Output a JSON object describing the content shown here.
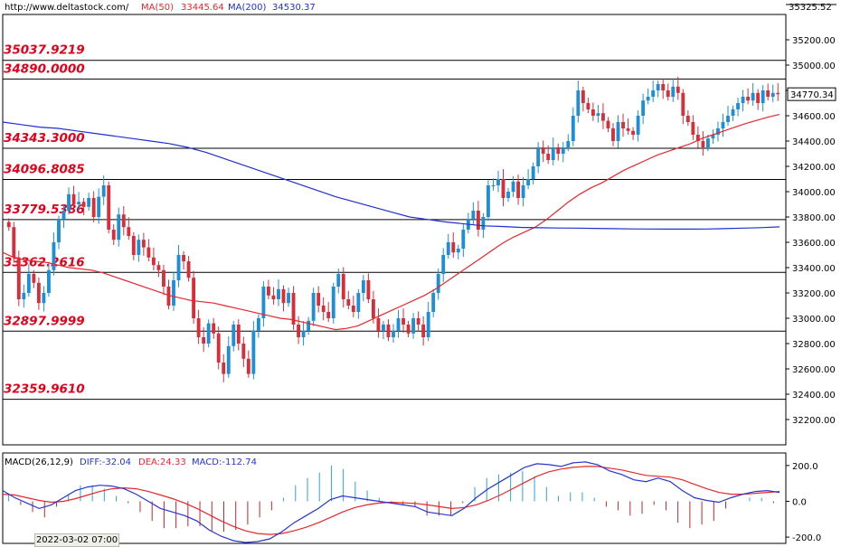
{
  "header": {
    "url": "http://www.deltastock.com/",
    "ma50_label": "MA(50)",
    "ma50_value": "33445.64",
    "ma200_label": "MA(200)",
    "ma200_value": "34530.37"
  },
  "macd_header": {
    "title": "MACD(26,12,9)",
    "diff": "DIFF:-32.04",
    "dea": "DEA:24.33",
    "macd": "MACD:-112.74"
  },
  "colors": {
    "up": "#1e8fd6",
    "down": "#d62f3a",
    "ma50": "#e8262c",
    "ma200": "#1f2fd0",
    "diff": "#2535d0",
    "dea": "#e8262c",
    "levels": "#e3001b",
    "hist_pos": "#2aa3e0",
    "hist_neg": "#c0262e"
  },
  "price_axis": {
    "ylim": [
      32000,
      35400
    ],
    "ticks": [
      "32200.00",
      "32400.00",
      "32600.00",
      "32800.00",
      "33000.00",
      "33200.00",
      "33400.00",
      "33600.00",
      "33800.00",
      "34000.00",
      "34200.00",
      "34400.00",
      "34600.00",
      "34800.00",
      "35000.00",
      "35200.00"
    ],
    "top_label": "35325.52",
    "last_price": "34770.34"
  },
  "macd_axis": {
    "ylim": [
      -230,
      260
    ],
    "ticks": [
      "200.0",
      "0.0",
      "-200.0"
    ]
  },
  "date_label": "2022-03-02 07:00",
  "chart_data": {
    "type": "candlestick",
    "levels": [
      {
        "label": "35037.9219",
        "value": 35037.9219
      },
      {
        "label": "34890.0000",
        "value": 34890.0
      },
      {
        "label": "34343.3000",
        "value": 34343.3
      },
      {
        "label": "34096.8085",
        "value": 34096.8085
      },
      {
        "label": "33779.5386",
        "value": 33779.5386
      },
      {
        "label": "33362.2616",
        "value": 33362.2616
      },
      {
        "label": "32897.9999",
        "value": 32897.9999
      },
      {
        "label": "32359.9610",
        "value": 32359.961
      }
    ],
    "closes": [
      33720,
      33480,
      33150,
      33200,
      33350,
      33280,
      33120,
      33200,
      33380,
      33600,
      33780,
      33850,
      33980,
      33900,
      33920,
      33880,
      33950,
      33800,
      33960,
      34050,
      33700,
      33620,
      33820,
      33720,
      33650,
      33500,
      33620,
      33560,
      33480,
      33420,
      33380,
      33250,
      33100,
      33300,
      33500,
      33450,
      33320,
      33000,
      32850,
      32800,
      32960,
      32880,
      32650,
      32560,
      32780,
      32950,
      32800,
      32680,
      32560,
      32900,
      33000,
      33250,
      33180,
      33150,
      33230,
      33120,
      33200,
      32950,
      32850,
      32900,
      32980,
      33200,
      33100,
      33050,
      33000,
      33250,
      33350,
      33150,
      33100,
      33050,
      33200,
      33300,
      33150,
      33000,
      32900,
      32950,
      32850,
      32900,
      33000,
      32950,
      32880,
      33000,
      32950,
      32850,
      33050,
      33200,
      33350,
      33500,
      33600,
      33520,
      33550,
      33700,
      33780,
      33850,
      33700,
      33800,
      34050,
      34050,
      34100,
      33950,
      34000,
      34080,
      33950,
      34050,
      34100,
      34200,
      34350,
      34300,
      34250,
      34350,
      34300,
      34350,
      34400,
      34600,
      34800,
      34700,
      34650,
      34600,
      34620,
      34560,
      34500,
      34400,
      34550,
      34500,
      34480,
      34450,
      34600,
      34720,
      34750,
      34800,
      34850,
      34800,
      34750,
      34830,
      34780,
      34600,
      34550,
      34450,
      34400,
      34350,
      34420,
      34450,
      34500,
      34550,
      34600,
      34650,
      34700,
      34750,
      34720,
      34780,
      34700,
      34800,
      34750,
      34780,
      34770
    ],
    "ma50": [
      33520,
      33480,
      33460,
      33450,
      33440,
      33420,
      33400,
      33390,
      33380,
      33360,
      33330,
      33300,
      33270,
      33240,
      33210,
      33180,
      33160,
      33140,
      33130,
      33120,
      33100,
      33080,
      33060,
      33040,
      33020,
      33000,
      32990,
      32970,
      32950,
      32930,
      32910,
      32920,
      32940,
      32980,
      33020,
      33060,
      33100,
      33140,
      33180,
      33230,
      33290,
      33350,
      33410,
      33470,
      33530,
      33590,
      33640,
      33680,
      33720,
      33780,
      33850,
      33920,
      33980,
      34030,
      34070,
      34120,
      34170,
      34210,
      34250,
      34290,
      34320,
      34350,
      34380,
      34420,
      34450,
      34480,
      34510,
      34540,
      34565,
      34590,
      34610
    ],
    "ma200": [
      34550,
      34530,
      34510,
      34500,
      34480,
      34460,
      34440,
      34420,
      34400,
      34380,
      34350,
      34310,
      34260,
      34210,
      34160,
      34110,
      34060,
      34010,
      33960,
      33920,
      33880,
      33840,
      33800,
      33780,
      33760,
      33745,
      33730,
      33725,
      33718,
      33715,
      33713,
      33712,
      33710,
      33708,
      33706,
      33705,
      33704,
      33704,
      33705,
      33708,
      33712,
      33716,
      33722
    ],
    "macd_diff": [
      60,
      20,
      -10,
      -40,
      -20,
      20,
      60,
      80,
      90,
      85,
      70,
      40,
      0,
      -40,
      -60,
      -80,
      -110,
      -160,
      -195,
      -220,
      -230,
      -225,
      -210,
      -170,
      -120,
      -80,
      -40,
      10,
      30,
      20,
      10,
      0,
      -10,
      -20,
      -30,
      -60,
      -70,
      -80,
      -40,
      20,
      70,
      110,
      150,
      190,
      210,
      205,
      195,
      215,
      220,
      205,
      170,
      150,
      120,
      110,
      130,
      110,
      60,
      20,
      5,
      -5,
      20,
      40,
      55,
      60,
      50
    ],
    "macd_dea": [
      40,
      35,
      20,
      5,
      -5,
      0,
      15,
      35,
      55,
      70,
      75,
      70,
      55,
      35,
      15,
      -10,
      -40,
      -75,
      -110,
      -140,
      -165,
      -180,
      -185,
      -180,
      -165,
      -145,
      -120,
      -90,
      -60,
      -35,
      -20,
      -10,
      -5,
      -8,
      -12,
      -20,
      -30,
      -40,
      -35,
      -20,
      5,
      35,
      70,
      105,
      140,
      165,
      180,
      190,
      195,
      195,
      185,
      175,
      160,
      145,
      140,
      135,
      120,
      95,
      70,
      50,
      40,
      40,
      45,
      50,
      55
    ],
    "macd_hist": [
      40,
      -20,
      -60,
      -90,
      -30,
      40,
      90,
      90,
      70,
      30,
      -10,
      -60,
      -110,
      -150,
      -150,
      -140,
      -140,
      -170,
      -170,
      -160,
      -130,
      -90,
      -50,
      20,
      90,
      130,
      160,
      200,
      180,
      110,
      60,
      20,
      -10,
      -20,
      -30,
      -80,
      -80,
      -80,
      -10,
      80,
      130,
      150,
      160,
      170,
      140,
      80,
      30,
      50,
      50,
      20,
      -30,
      -50,
      -80,
      -70,
      -20,
      -50,
      -120,
      -150,
      -130,
      -110,
      -40,
      0,
      20,
      20,
      -10
    ]
  }
}
